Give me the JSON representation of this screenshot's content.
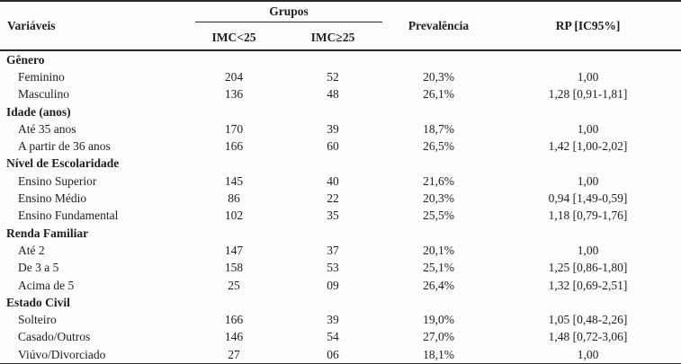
{
  "table": {
    "headers": {
      "variables": "Variáveis",
      "groups": "Grupos",
      "group_cols": [
        "IMC<25",
        "IMC≥25"
      ],
      "prevalence": "Prevalência",
      "rp": "RP [IC95%]"
    },
    "colors": {
      "text": "#1e1e1e",
      "rule": "#262626",
      "background": "#fdfdfd"
    },
    "rows": [
      {
        "type": "section",
        "label": "Gênero"
      },
      {
        "type": "item",
        "label": "Feminino",
        "imc_lt_25": "204",
        "imc_ge_25": "52",
        "prevalence": "20,3%",
        "rp": "1,00"
      },
      {
        "type": "item",
        "label": "Masculino",
        "imc_lt_25": "136",
        "imc_ge_25": "48",
        "prevalence": "26,1%",
        "rp": "1,28 [0,91-1,81]"
      },
      {
        "type": "section",
        "label": "Idade (anos)"
      },
      {
        "type": "item",
        "label": "Até 35 anos",
        "imc_lt_25": "170",
        "imc_ge_25": "39",
        "prevalence": "18,7%",
        "rp": "1,00"
      },
      {
        "type": "item",
        "label": "A partir de 36 anos",
        "imc_lt_25": "166",
        "imc_ge_25": "60",
        "prevalence": "26,5%",
        "rp": "1,42 [1,00-2,02]"
      },
      {
        "type": "section",
        "label": "Nível de Escolaridade"
      },
      {
        "type": "item",
        "label": "Ensino Superior",
        "imc_lt_25": "145",
        "imc_ge_25": "40",
        "prevalence": "21,6%",
        "rp": "1,00"
      },
      {
        "type": "item",
        "label": "Ensino Médio",
        "imc_lt_25": "86",
        "imc_ge_25": "22",
        "prevalence": "20,3%",
        "rp": "0,94 [1,49-0,59]"
      },
      {
        "type": "item",
        "label": "Ensino Fundamental",
        "imc_lt_25": "102",
        "imc_ge_25": "35",
        "prevalence": "25,5%",
        "rp": "1,18 [0,79-1,76]"
      },
      {
        "type": "section",
        "label": "Renda Familiar"
      },
      {
        "type": "item",
        "label": "Até 2",
        "imc_lt_25": "147",
        "imc_ge_25": "37",
        "prevalence": "20,1%",
        "rp": "1,00"
      },
      {
        "type": "item",
        "label": "De 3 a 5",
        "imc_lt_25": "158",
        "imc_ge_25": "53",
        "prevalence": "25,1%",
        "rp": "1,25 [0,86-1,80]"
      },
      {
        "type": "item",
        "label": "Acima de 5",
        "imc_lt_25": "25",
        "imc_ge_25": "09",
        "prevalence": "26,4%",
        "rp": "1,32 [0,69-2,51]"
      },
      {
        "type": "section",
        "label": "Estado Civil"
      },
      {
        "type": "item",
        "label": "Solteiro",
        "imc_lt_25": "166",
        "imc_ge_25": "39",
        "prevalence": "19,0%",
        "rp": "1,05 [0,48-2,26]"
      },
      {
        "type": "item",
        "label": "Casado/Outros",
        "imc_lt_25": "146",
        "imc_ge_25": "54",
        "prevalence": "27,0%",
        "rp": "1,48 [0,72-3,06]"
      },
      {
        "type": "item",
        "label": "Viúvo/Divorciado",
        "imc_lt_25": "27",
        "imc_ge_25": "06",
        "prevalence": "18,1%",
        "rp": "1,00"
      }
    ]
  }
}
